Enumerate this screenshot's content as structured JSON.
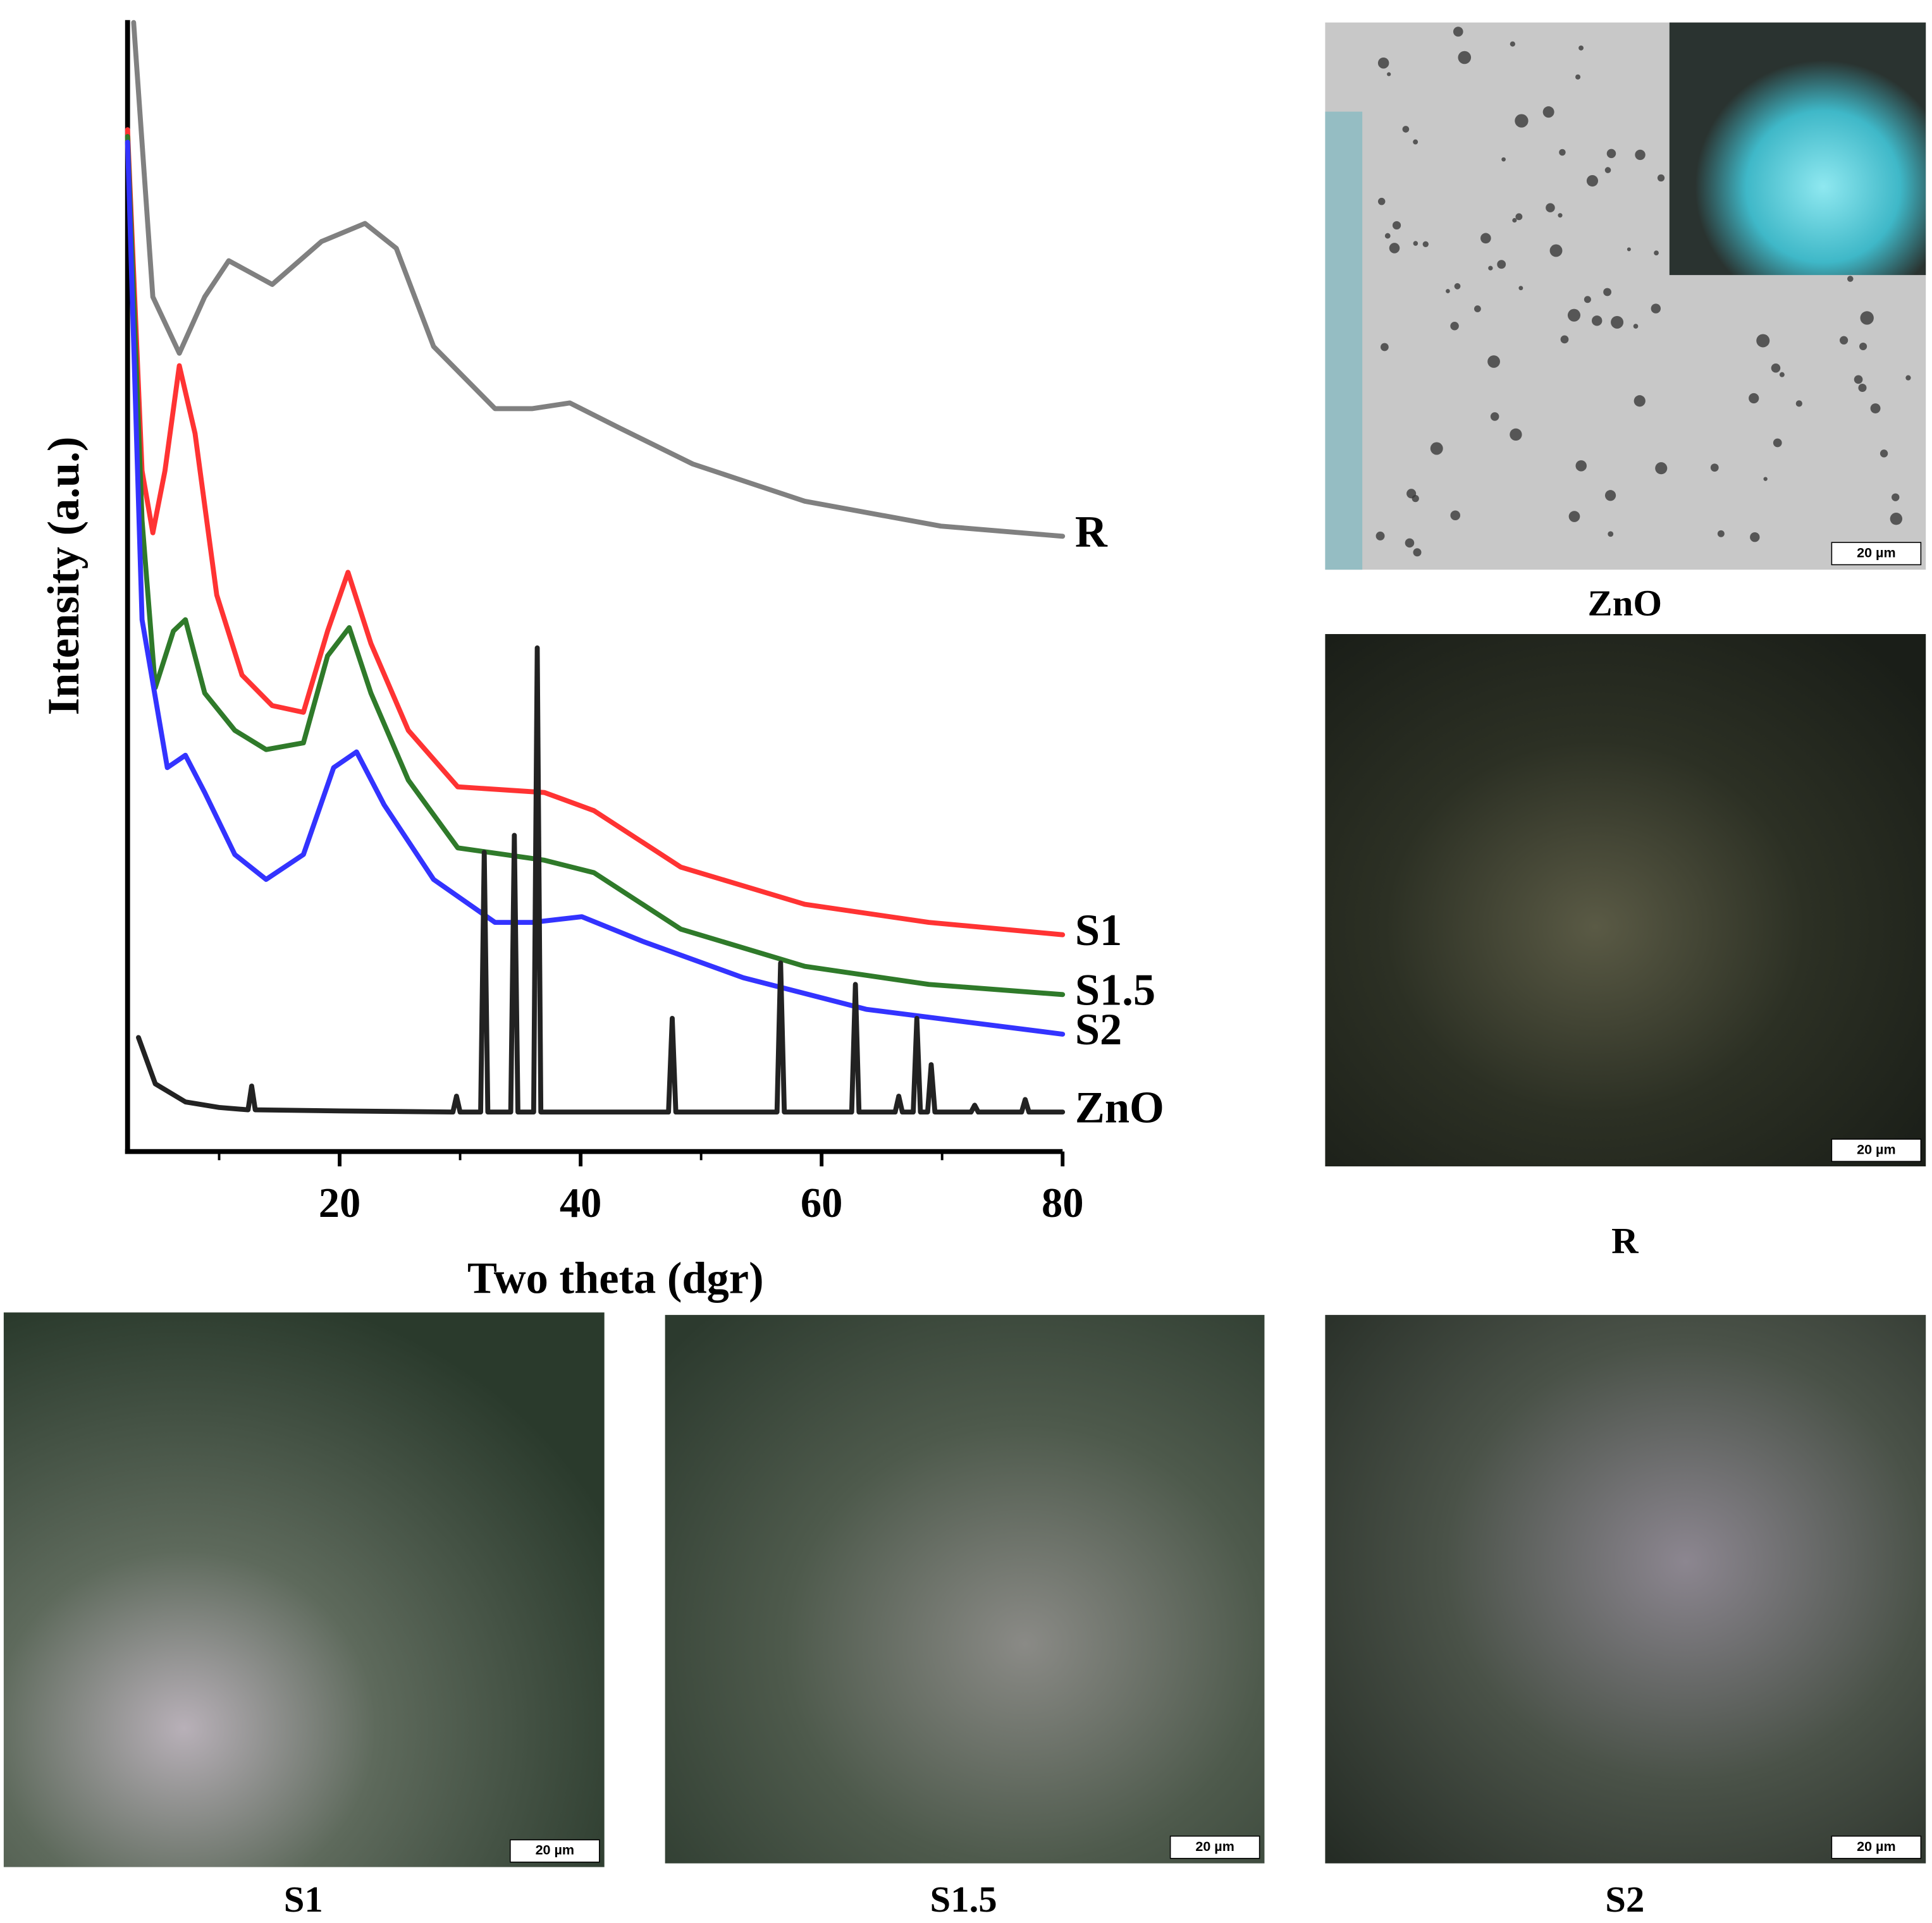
{
  "chart_data": {
    "type": "line",
    "x_label": "Two theta (dgr)",
    "y_label": "Intensity (a.u.)",
    "xlim": [
      2.4,
      80
    ],
    "xticks": [
      20,
      40,
      60,
      80
    ],
    "xminor_ticks": [
      10,
      30,
      50,
      70
    ],
    "ylim": [
      0,
      100
    ],
    "series": [
      {
        "name": "R",
        "color": "#808080",
        "x": [
          2.9,
          4.5,
          6.7,
          8.8,
          10.8,
          14.4,
          18.5,
          22.1,
          24.7,
          27.8,
          32.9,
          36.0,
          39.1,
          43.2,
          49.3,
          58.6,
          69.9,
          80
        ],
        "values": [
          100,
          75.7,
          70.7,
          75.7,
          78.9,
          76.8,
          80.6,
          82.2,
          80.0,
          71.3,
          65.8,
          65.8,
          66.3,
          64.1,
          60.9,
          57.6,
          55.4,
          54.5
        ]
      },
      {
        "name": "S1",
        "color": "#ff3333",
        "x": [
          2.4,
          3.6,
          4.5,
          5.5,
          6.7,
          8.0,
          9.8,
          11.9,
          14.4,
          17.0,
          19.0,
          20.7,
          22.6,
          25.7,
          29.8,
          37.0,
          41.1,
          48.3,
          58.6,
          68.9,
          80
        ],
        "values": [
          90.5,
          60.3,
          54.8,
          60.3,
          69.6,
          63.6,
          49.3,
          42.2,
          39.5,
          38.9,
          46.1,
          51.3,
          45.0,
          37.3,
          32.3,
          31.8,
          30.2,
          25.2,
          21.9,
          20.3,
          19.2
        ]
      },
      {
        "name": "S1.5",
        "color": "#2f7a2a",
        "x": [
          2.4,
          3.6,
          4.7,
          6.2,
          7.2,
          8.8,
          11.3,
          13.9,
          17.0,
          19.0,
          20.8,
          22.6,
          25.7,
          29.8,
          37.0,
          41.1,
          48.3,
          58.6,
          68.9,
          80
        ],
        "values": [
          89.9,
          55.9,
          41.1,
          46.1,
          47.1,
          40.6,
          37.3,
          35.6,
          36.2,
          43.9,
          46.4,
          40.6,
          32.9,
          26.9,
          25.8,
          24.7,
          19.7,
          16.4,
          14.8,
          13.9
        ]
      },
      {
        "name": "S2",
        "color": "#3333ff",
        "x": [
          2.4,
          3.6,
          5.7,
          7.2,
          8.8,
          11.3,
          13.9,
          17.0,
          19.5,
          21.4,
          23.7,
          27.8,
          32.9,
          36.0,
          40.1,
          45.2,
          53.5,
          63.7,
          80
        ],
        "values": [
          89.4,
          47.1,
          34.0,
          35.1,
          31.8,
          26.3,
          24.1,
          26.3,
          34.0,
          35.4,
          30.7,
          24.1,
          20.3,
          20.3,
          20.8,
          18.6,
          15.4,
          12.6,
          10.4
        ]
      },
      {
        "name": "ZnO",
        "color": "#222222",
        "x": [
          3.3,
          4.7,
          7.2,
          10,
          12.4,
          12.7,
          13.0,
          20,
          29.4,
          29.7,
          30.0,
          31.7,
          32.0,
          32.3,
          34.2,
          34.5,
          34.8,
          36.1,
          36.4,
          36.7,
          47.3,
          47.6,
          47.9,
          56.3,
          56.6,
          56.9,
          62.5,
          62.8,
          63.1,
          66.1,
          66.4,
          66.7,
          67.6,
          67.9,
          68.2,
          68.8,
          69.1,
          69.4,
          72.4,
          72.7,
          73.0,
          76.6,
          76.9,
          77.2,
          80
        ],
        "values": [
          10.1,
          6.0,
          4.4,
          3.9,
          3.7,
          5.8,
          3.7,
          3.6,
          3.5,
          4.9,
          3.5,
          3.5,
          26.5,
          3.5,
          3.5,
          28.0,
          3.5,
          3.5,
          44.6,
          3.5,
          3.5,
          11.8,
          3.5,
          3.5,
          16.7,
          3.5,
          3.5,
          14.8,
          3.5,
          3.5,
          4.9,
          3.5,
          3.5,
          11.8,
          3.5,
          3.5,
          7.7,
          3.5,
          3.5,
          4.1,
          3.5,
          3.5,
          4.6,
          3.5,
          3.5
        ]
      }
    ]
  },
  "micrographs": [
    {
      "caption": "ZnO",
      "scale_bar": "20 µm"
    },
    {
      "caption": "R",
      "scale_bar": "20 µm"
    },
    {
      "caption": "S1",
      "scale_bar": "20 µm"
    },
    {
      "caption": "S1.5",
      "scale_bar": "20 µm"
    },
    {
      "caption": "S2",
      "scale_bar": "20 µm"
    }
  ]
}
